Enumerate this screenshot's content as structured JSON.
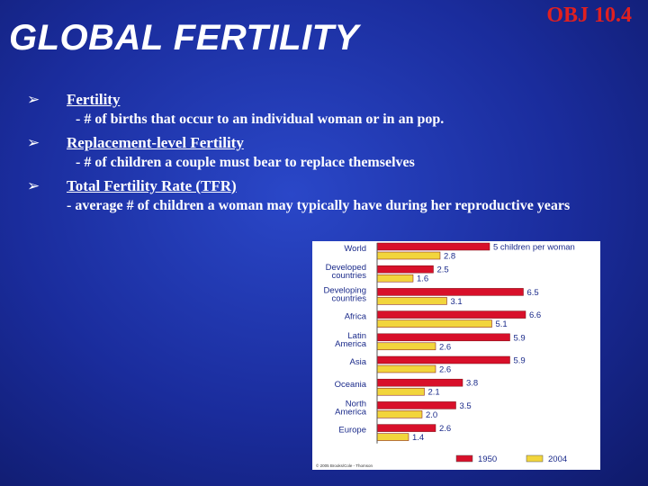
{
  "slide": {
    "title": "GLOBAL FERTILITY",
    "obj_label": "OBJ 10.4",
    "bullets": [
      {
        "heading": "Fertility",
        "detail": "- # of births that occur to an individual woman or in an pop."
      },
      {
        "heading": "Replacement-level Fertility",
        "detail": "- # of children a couple must bear to replace themselves"
      },
      {
        "heading": "Total Fertility Rate (TFR)",
        "detail": "- average # of children a woman may typically have during her reproductive years"
      }
    ]
  },
  "chart_data": {
    "type": "bar",
    "orientation": "horizontal",
    "categories": [
      "World",
      "Developed countries",
      "Developing countries",
      "Africa",
      "Latin America",
      "Asia",
      "Oceania",
      "North America",
      "Europe"
    ],
    "series": [
      {
        "name": "1950",
        "color": "#d8102a",
        "values": [
          5,
          2.5,
          6.5,
          6.6,
          5.9,
          5.9,
          3.8,
          3.5,
          2.6
        ]
      },
      {
        "name": "2004",
        "color": "#f2d53c",
        "values": [
          2.8,
          1.6,
          3.1,
          5.1,
          2.6,
          2.6,
          2.1,
          2.0,
          1.4
        ]
      }
    ],
    "data_labels": {
      "series_0": [
        "5 children per woman",
        "2.5",
        "6.5",
        "6.6",
        "5.9",
        "5.9",
        "3.8",
        "3.5",
        "2.6"
      ],
      "series_1": [
        "2.8",
        "1.6",
        "3.1",
        "5.1",
        "2.6",
        "2.6",
        "2.1",
        "2.0",
        "1.4"
      ]
    },
    "legend_placement": "bottom-right",
    "grid": false,
    "credit": "© 2005 Brooks/Cole - Thomson",
    "xlim": [
      0,
      7
    ]
  }
}
